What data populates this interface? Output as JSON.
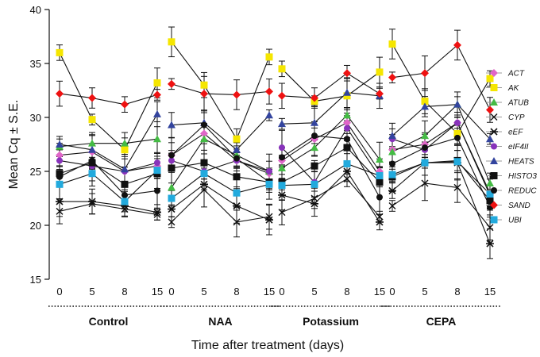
{
  "chart_data": {
    "type": "line",
    "title": "",
    "ylabel": "Mean Cq ± S.E.",
    "xlabel": "Time after treatment (days)",
    "ylim": [
      15,
      40
    ],
    "yticks": [
      15,
      20,
      25,
      30,
      35,
      40
    ],
    "x": [
      "0",
      "5",
      "8",
      "15"
    ],
    "groups": [
      "Control",
      "NAA",
      "Potassium",
      "CEPA"
    ],
    "legend_position": "right",
    "series": [
      {
        "name": "ACT",
        "color": "#e066c8",
        "marker": "diamond",
        "values": [
          [
            26.5,
            26.8,
            25.0,
            25.5
          ],
          [
            26.5,
            28.5,
            26.0,
            24.8
          ],
          [
            26.0,
            28.0,
            29.5,
            25.0
          ],
          [
            27.0,
            27.5,
            29.5,
            22.8
          ]
        ]
      },
      {
        "name": "AK",
        "color": "#f5e600",
        "marker": "square",
        "values": [
          [
            36.0,
            29.8,
            27.0,
            33.2
          ],
          [
            37.0,
            33.0,
            28.0,
            35.6
          ],
          [
            34.5,
            31.5,
            32.0,
            34.2
          ],
          [
            36.8,
            31.5,
            28.5,
            33.6
          ]
        ]
      },
      {
        "name": "ATUB",
        "color": "#44bb44",
        "marker": "triangle",
        "values": [
          [
            27.3,
            27.6,
            27.6,
            28.0
          ],
          [
            23.5,
            28.0,
            26.5,
            25.0
          ],
          [
            25.3,
            27.2,
            30.2,
            26.1
          ],
          [
            26.8,
            28.3,
            31.2,
            23.9
          ]
        ]
      },
      {
        "name": "CYP",
        "color": "#111111",
        "marker": "x",
        "values": [
          [
            21.3,
            22.0,
            21.5,
            21.0
          ],
          [
            20.3,
            23.3,
            20.3,
            20.8
          ],
          [
            21.2,
            22.5,
            24.3,
            20.8
          ],
          [
            21.8,
            23.9,
            23.5,
            19.8
          ]
        ]
      },
      {
        "name": "eEF",
        "color": "#111111",
        "marker": "star",
        "values": [
          [
            22.2,
            22.2,
            21.8,
            21.2
          ],
          [
            21.5,
            23.8,
            21.8,
            20.5
          ],
          [
            22.8,
            22.0,
            25.0,
            20.3
          ],
          [
            23.2,
            25.8,
            25.8,
            18.3
          ]
        ]
      },
      {
        "name": "eIF4II",
        "color": "#8833bb",
        "marker": "circle",
        "values": [
          [
            26.0,
            25.5,
            25.0,
            25.8
          ],
          [
            26.0,
            25.0,
            26.0,
            25.0
          ],
          [
            27.2,
            24.0,
            29.0,
            24.5
          ],
          [
            28.0,
            27.0,
            29.5,
            23.0
          ]
        ]
      },
      {
        "name": "HEATS",
        "color": "#33449e",
        "marker": "triangle",
        "values": [
          [
            27.5,
            27.0,
            25.2,
            30.3
          ],
          [
            29.3,
            29.5,
            27.0,
            30.2
          ],
          [
            29.4,
            29.5,
            32.3,
            32.0
          ],
          [
            28.3,
            31.0,
            31.2,
            28.0
          ]
        ]
      },
      {
        "name": "HISTO3",
        "color": "#111111",
        "marker": "square",
        "values": [
          [
            24.8,
            25.8,
            23.8,
            24.8
          ],
          [
            25.3,
            25.8,
            24.5,
            24.0
          ],
          [
            24.0,
            25.5,
            27.2,
            24.0
          ],
          [
            24.5,
            25.8,
            26.0,
            22.3
          ]
        ]
      },
      {
        "name": "REDUC",
        "color": "#111111",
        "marker": "circle",
        "values": [
          [
            24.5,
            26.0,
            22.8,
            23.2
          ],
          [
            26.5,
            29.3,
            26.2,
            24.0
          ],
          [
            26.3,
            28.3,
            28.0,
            22.6
          ],
          [
            25.7,
            27.2,
            28.1,
            21.7
          ]
        ]
      },
      {
        "name": "SAND",
        "color": "#ee1111",
        "marker": "diamond",
        "values": [
          [
            32.2,
            31.8,
            31.2,
            32.1
          ],
          [
            33.1,
            32.2,
            32.1,
            32.4
          ],
          [
            32.0,
            31.8,
            34.1,
            32.2
          ],
          [
            33.7,
            34.1,
            36.7,
            30.7
          ]
        ]
      },
      {
        "name": "UBI",
        "color": "#22aadd",
        "marker": "square",
        "values": [
          [
            23.8,
            24.8,
            22.2,
            25.1
          ],
          [
            22.5,
            24.8,
            23.0,
            23.8
          ],
          [
            23.7,
            23.8,
            25.7,
            24.6
          ],
          [
            24.7,
            25.8,
            25.9,
            22.9
          ]
        ]
      }
    ]
  }
}
